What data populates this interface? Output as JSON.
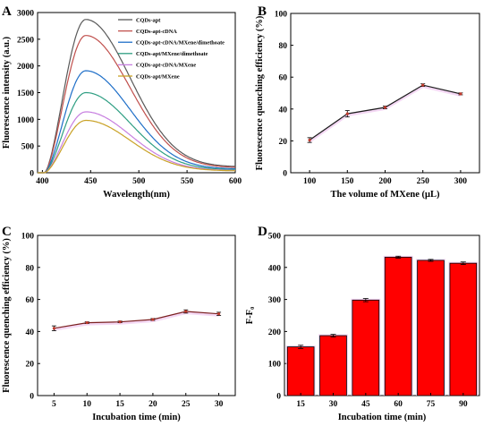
{
  "colors": {
    "background": "#ffffff",
    "axis": "#000000",
    "line_dark": "#1a1a1a",
    "bar_fill": "#ff0000",
    "error_shadow": "#f0c8f0"
  },
  "chart_data": [
    {
      "panel": "A",
      "type": "line",
      "title": "",
      "xlabel": "Wavelength(nm)",
      "ylabel": "Fluorescence intensity (a.u.)",
      "xlim": [
        395,
        600
      ],
      "ylim": [
        0,
        3000
      ],
      "xticks": [
        400,
        450,
        500,
        550,
        600
      ],
      "yticks": [
        0,
        500,
        1000,
        1500,
        2000,
        2500,
        3000
      ],
      "legend_position": "top-right",
      "peak_x": 445,
      "series": [
        {
          "name": "CQDs-apt",
          "color": "#595959",
          "peak": 2870,
          "tail": 110
        },
        {
          "name": "CQDs-apt-cDNA",
          "color": "#c0504d",
          "peak": 2570,
          "tail": 95
        },
        {
          "name": "CQDs-apt-cDNA/MXene/dimethoate",
          "color": "#1f6fc8",
          "peak": 1910,
          "tail": 70
        },
        {
          "name": "CQDs-apt/MXene/dimethoate",
          "color": "#2e9e82",
          "peak": 1500,
          "tail": 55
        },
        {
          "name": "CQDs-apt-cDNA/MXene",
          "color": "#c77fe0",
          "peak": 1140,
          "tail": 42
        },
        {
          "name": "CQDs-apt/MXene",
          "color": "#c9a227",
          "peak": 980,
          "tail": 35
        }
      ]
    },
    {
      "panel": "B",
      "type": "line",
      "title": "",
      "xlabel": "The volume of MXene (μL)",
      "ylabel": "Fluorescence quenching efficiency (%)",
      "xlim": [
        75,
        325
      ],
      "ylim": [
        0,
        100
      ],
      "xticks": [
        100,
        150,
        200,
        250,
        300
      ],
      "yticks": [
        0,
        20,
        40,
        60,
        80,
        100
      ],
      "x": [
        100,
        150,
        200,
        250,
        300
      ],
      "values": [
        20.5,
        37,
        41,
        55,
        49.5
      ],
      "errors": [
        1.5,
        2,
        0.8,
        0.8,
        0.6
      ]
    },
    {
      "panel": "C",
      "type": "line",
      "title": "",
      "xlabel": "Incubation time (min)",
      "ylabel": "Fluorescence quenching efficiency (%)",
      "xlim": [
        2.5,
        32.5
      ],
      "ylim": [
        0,
        100
      ],
      "xticks": [
        5,
        10,
        15,
        20,
        25,
        30
      ],
      "yticks": [
        0,
        20,
        40,
        60,
        80,
        100
      ],
      "x": [
        5,
        10,
        15,
        20,
        25,
        30
      ],
      "values": [
        42,
        45.5,
        46,
        47.5,
        52.5,
        51
      ],
      "errors": [
        1.5,
        0.5,
        0.5,
        0.6,
        1.0,
        1.0
      ]
    },
    {
      "panel": "D",
      "type": "bar",
      "title": "",
      "xlabel": "Incubation time (min)",
      "ylabel": "F-F₀",
      "ylim": [
        0,
        500
      ],
      "yticks": [
        0,
        100,
        200,
        300,
        400,
        500
      ],
      "categories": [
        "15",
        "30",
        "45",
        "60",
        "75",
        "90"
      ],
      "values": [
        152,
        187,
        298,
        432,
        422,
        413
      ],
      "errors": [
        5,
        4,
        5,
        3,
        3,
        4
      ]
    }
  ]
}
